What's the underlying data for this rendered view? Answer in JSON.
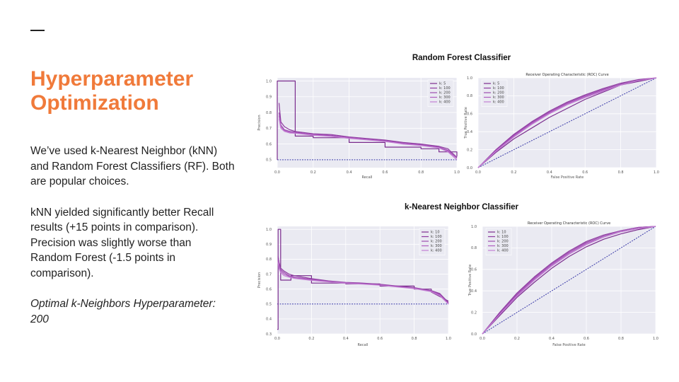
{
  "slide": {
    "title": "Hyperparameter Optimization",
    "paragraphs": [
      "We’ve used k-Nearest Neighbor (kNN) and Random Forest Classifiers (RF). Both are popular choices.",
      "kNN yielded significantly better Recall results (+15 points in comparison). Precision was slightly worse than Random Forest (-1.5 points in comparison)."
    ],
    "optimal": "Optimal k-Neighbors Hyperparameter: 200"
  },
  "sections": {
    "rf_title": "Random Forest Classifier",
    "knn_title": "k-Nearest Neighbor Classifier"
  },
  "colors": {
    "accent": "#f07a3a",
    "series": [
      "#7b2d8e",
      "#8e3aa0",
      "#9c4db0",
      "#b05cc0",
      "#c27fd3"
    ],
    "baseline": "#3a3aa8",
    "plot_bg": "#eaeaf2"
  },
  "chart_data": [
    {
      "id": "rf_pr",
      "type": "line",
      "title": "",
      "xlabel": "Recall",
      "ylabel": "Precision",
      "xlim": [
        0,
        1
      ],
      "ylim": [
        0.45,
        1.02
      ],
      "xticks": [
        "0.0",
        "0.2",
        "0.4",
        "0.6",
        "0.8",
        "1.0"
      ],
      "yticks": [
        "0.5",
        "0.6",
        "0.7",
        "0.8",
        "0.9",
        "1.0"
      ],
      "grid": true,
      "legend": "top-right",
      "series": [
        {
          "name": "k: 5",
          "x": [
            0,
            0,
            0.1,
            0.1,
            0.2,
            0.2,
            0.4,
            0.4,
            0.6,
            0.6,
            0.8,
            0.8,
            0.9,
            0.9,
            1.0,
            1.0
          ],
          "y": [
            0.5,
            1.0,
            1.0,
            0.65,
            0.65,
            0.64,
            0.64,
            0.61,
            0.61,
            0.58,
            0.58,
            0.57,
            0.57,
            0.55,
            0.55,
            0.52
          ]
        },
        {
          "name": "k: 100",
          "x": [
            0.01,
            0.02,
            0.04,
            0.07,
            0.1,
            0.2,
            0.3,
            0.4,
            0.5,
            0.6,
            0.7,
            0.8,
            0.9,
            0.95,
            1.0
          ],
          "y": [
            0.86,
            0.74,
            0.71,
            0.69,
            0.68,
            0.665,
            0.66,
            0.645,
            0.635,
            0.625,
            0.61,
            0.6,
            0.585,
            0.57,
            0.515
          ]
        },
        {
          "name": "k: 200",
          "x": [
            0.01,
            0.02,
            0.04,
            0.07,
            0.1,
            0.2,
            0.3,
            0.4,
            0.5,
            0.6,
            0.7,
            0.8,
            0.9,
            0.95,
            1.0
          ],
          "y": [
            0.8,
            0.72,
            0.69,
            0.68,
            0.675,
            0.66,
            0.655,
            0.64,
            0.63,
            0.62,
            0.605,
            0.595,
            0.58,
            0.56,
            0.51
          ]
        },
        {
          "name": "k: 300",
          "x": [
            0.01,
            0.02,
            0.04,
            0.07,
            0.1,
            0.2,
            0.3,
            0.4,
            0.5,
            0.6,
            0.7,
            0.8,
            0.9,
            0.95,
            1.0
          ],
          "y": [
            0.78,
            0.71,
            0.685,
            0.675,
            0.67,
            0.66,
            0.65,
            0.64,
            0.628,
            0.618,
            0.603,
            0.592,
            0.578,
            0.555,
            0.51
          ]
        },
        {
          "name": "k: 400",
          "x": [
            0.01,
            0.02,
            0.04,
            0.07,
            0.1,
            0.2,
            0.3,
            0.4,
            0.5,
            0.6,
            0.7,
            0.8,
            0.9,
            0.95,
            1.0
          ],
          "y": [
            0.76,
            0.7,
            0.68,
            0.67,
            0.668,
            0.655,
            0.648,
            0.636,
            0.626,
            0.616,
            0.6,
            0.59,
            0.575,
            0.55,
            0.5
          ]
        }
      ],
      "baseline": {
        "x": [
          0,
          1
        ],
        "y": [
          0.5,
          0.5
        ]
      }
    },
    {
      "id": "rf_roc",
      "type": "line",
      "title": "Receiver Operating Characteristic (ROC) Curve",
      "xlabel": "False Positive Rate",
      "ylabel": "True Positive Rate",
      "xlim": [
        0,
        1
      ],
      "ylim": [
        0,
        1
      ],
      "xticks": [
        "0.0",
        "0.2",
        "0.4",
        "0.6",
        "0.8",
        "1.0"
      ],
      "yticks": [
        "0.0",
        "0.2",
        "0.4",
        "0.6",
        "0.8",
        "1.0"
      ],
      "grid": true,
      "legend": "top-left",
      "series": [
        {
          "name": "k: 5",
          "x": [
            0,
            0.1,
            0.2,
            0.4,
            0.6,
            0.8,
            1.0
          ],
          "y": [
            0,
            0.17,
            0.32,
            0.56,
            0.76,
            0.92,
            1.0
          ]
        },
        {
          "name": "k: 100",
          "x": [
            0,
            0.1,
            0.2,
            0.3,
            0.4,
            0.5,
            0.6,
            0.7,
            0.8,
            0.9,
            1.0
          ],
          "y": [
            0,
            0.2,
            0.37,
            0.51,
            0.63,
            0.73,
            0.81,
            0.88,
            0.94,
            0.98,
            1.0
          ]
        },
        {
          "name": "k: 200",
          "x": [
            0,
            0.1,
            0.2,
            0.3,
            0.4,
            0.5,
            0.6,
            0.7,
            0.8,
            0.9,
            1.0
          ],
          "y": [
            0,
            0.19,
            0.36,
            0.5,
            0.62,
            0.72,
            0.8,
            0.87,
            0.93,
            0.97,
            1.0
          ]
        },
        {
          "name": "k: 300",
          "x": [
            0,
            0.1,
            0.2,
            0.3,
            0.4,
            0.5,
            0.6,
            0.7,
            0.8,
            0.9,
            1.0
          ],
          "y": [
            0,
            0.19,
            0.35,
            0.49,
            0.61,
            0.71,
            0.79,
            0.86,
            0.92,
            0.97,
            1.0
          ]
        },
        {
          "name": "k: 400",
          "x": [
            0,
            0.1,
            0.2,
            0.3,
            0.4,
            0.5,
            0.6,
            0.7,
            0.8,
            0.9,
            1.0
          ],
          "y": [
            0,
            0.18,
            0.34,
            0.48,
            0.6,
            0.7,
            0.78,
            0.85,
            0.92,
            0.97,
            1.0
          ]
        }
      ],
      "baseline": {
        "x": [
          0,
          1
        ],
        "y": [
          0,
          1
        ]
      }
    },
    {
      "id": "knn_pr",
      "type": "line",
      "title": "",
      "xlabel": "Recall",
      "ylabel": "Precision",
      "xlim": [
        0,
        1
      ],
      "ylim": [
        0.3,
        1.02
      ],
      "xticks": [
        "0.0",
        "0.2",
        "0.4",
        "0.6",
        "0.8",
        "1.0"
      ],
      "yticks": [
        "0.3",
        "0.4",
        "0.5",
        "0.6",
        "0.7",
        "0.8",
        "0.9",
        "1.0"
      ],
      "grid": true,
      "legend": "top-right",
      "series": [
        {
          "name": "k: 10",
          "x": [
            0,
            0.005,
            0.005,
            0.02,
            0.02,
            0.08,
            0.08,
            0.2,
            0.2,
            0.4,
            0.4,
            0.6,
            0.6,
            0.8,
            0.8,
            0.9,
            0.9,
            1.0
          ],
          "y": [
            0.33,
            0.33,
            1.0,
            1.0,
            0.66,
            0.66,
            0.69,
            0.69,
            0.64,
            0.64,
            0.635,
            0.635,
            0.62,
            0.62,
            0.6,
            0.6,
            0.58,
            0.52
          ]
        },
        {
          "name": "k: 100",
          "x": [
            0.005,
            0.01,
            0.02,
            0.04,
            0.07,
            0.1,
            0.2,
            0.3,
            0.4,
            0.5,
            0.6,
            0.7,
            0.8,
            0.9,
            0.95,
            1.0
          ],
          "y": [
            0.82,
            0.78,
            0.74,
            0.72,
            0.7,
            0.69,
            0.67,
            0.655,
            0.645,
            0.64,
            0.632,
            0.62,
            0.61,
            0.59,
            0.57,
            0.51
          ]
        },
        {
          "name": "k: 200",
          "x": [
            0.005,
            0.01,
            0.02,
            0.04,
            0.07,
            0.1,
            0.2,
            0.3,
            0.4,
            0.5,
            0.6,
            0.7,
            0.8,
            0.9,
            0.95,
            1.0
          ],
          "y": [
            0.8,
            0.76,
            0.73,
            0.71,
            0.69,
            0.68,
            0.665,
            0.652,
            0.643,
            0.637,
            0.63,
            0.618,
            0.607,
            0.588,
            0.565,
            0.505
          ]
        },
        {
          "name": "k: 300",
          "x": [
            0.005,
            0.01,
            0.02,
            0.04,
            0.07,
            0.1,
            0.2,
            0.3,
            0.4,
            0.5,
            0.6,
            0.7,
            0.8,
            0.9,
            0.95,
            1.0
          ],
          "y": [
            0.79,
            0.75,
            0.72,
            0.7,
            0.685,
            0.676,
            0.662,
            0.65,
            0.641,
            0.635,
            0.628,
            0.616,
            0.605,
            0.585,
            0.56,
            0.5
          ]
        },
        {
          "name": "k: 400",
          "x": [
            0.005,
            0.01,
            0.02,
            0.04,
            0.07,
            0.1,
            0.2,
            0.3,
            0.4,
            0.5,
            0.6,
            0.7,
            0.8,
            0.9,
            0.95,
            1.0
          ],
          "y": [
            0.78,
            0.74,
            0.71,
            0.69,
            0.68,
            0.672,
            0.658,
            0.648,
            0.639,
            0.633,
            0.626,
            0.614,
            0.603,
            0.583,
            0.555,
            0.5
          ]
        }
      ],
      "baseline": {
        "x": [
          0,
          1
        ],
        "y": [
          0.5,
          0.5
        ]
      }
    },
    {
      "id": "knn_roc",
      "type": "line",
      "title": "Receiver Operating Characteristic (ROC) Curve",
      "xlabel": "False Positive Rate",
      "ylabel": "True Positive Rate",
      "xlim": [
        0,
        1
      ],
      "ylim": [
        0,
        1
      ],
      "xticks": [
        "0.0",
        "0.2",
        "0.4",
        "0.6",
        "0.8",
        "1.0"
      ],
      "yticks": [
        "0.0",
        "0.2",
        "0.4",
        "0.6",
        "0.8",
        "1.0"
      ],
      "grid": true,
      "legend": "top-left",
      "series": [
        {
          "name": "k: 10",
          "x": [
            0,
            0.1,
            0.2,
            0.3,
            0.4,
            0.5,
            0.6,
            0.7,
            0.8,
            0.9,
            1.0
          ],
          "y": [
            0,
            0.17,
            0.34,
            0.48,
            0.61,
            0.72,
            0.81,
            0.88,
            0.93,
            0.97,
            1.0
          ]
        },
        {
          "name": "k: 100",
          "x": [
            0,
            0.1,
            0.2,
            0.3,
            0.4,
            0.5,
            0.6,
            0.7,
            0.8,
            0.9,
            1.0
          ],
          "y": [
            0,
            0.2,
            0.38,
            0.53,
            0.66,
            0.77,
            0.86,
            0.92,
            0.96,
            0.99,
            1.0
          ]
        },
        {
          "name": "k: 200",
          "x": [
            0,
            0.1,
            0.2,
            0.3,
            0.4,
            0.5,
            0.6,
            0.7,
            0.8,
            0.9,
            1.0
          ],
          "y": [
            0,
            0.19,
            0.37,
            0.52,
            0.65,
            0.76,
            0.85,
            0.91,
            0.96,
            0.99,
            1.0
          ]
        },
        {
          "name": "k: 300",
          "x": [
            0,
            0.1,
            0.2,
            0.3,
            0.4,
            0.5,
            0.6,
            0.7,
            0.8,
            0.9,
            1.0
          ],
          "y": [
            0,
            0.18,
            0.36,
            0.51,
            0.64,
            0.75,
            0.84,
            0.9,
            0.95,
            0.98,
            1.0
          ]
        },
        {
          "name": "k: 400",
          "x": [
            0,
            0.1,
            0.2,
            0.3,
            0.4,
            0.5,
            0.6,
            0.7,
            0.8,
            0.9,
            1.0
          ],
          "y": [
            0,
            0.18,
            0.35,
            0.5,
            0.63,
            0.74,
            0.83,
            0.9,
            0.95,
            0.98,
            1.0
          ]
        }
      ],
      "baseline": {
        "x": [
          0,
          1
        ],
        "y": [
          0,
          1
        ]
      }
    }
  ]
}
